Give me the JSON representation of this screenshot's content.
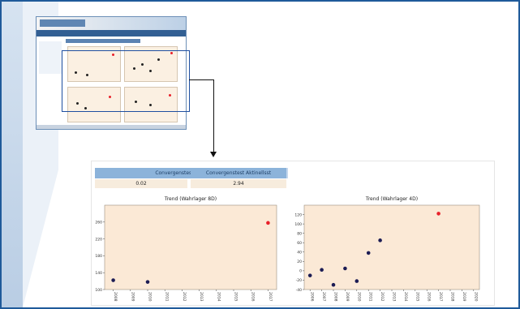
{
  "zoom_panel": {
    "kpi_headers": [
      "Convergenstest Aktuellst",
      "Convergenstest Aktinellsst"
    ],
    "kpi_values": [
      "0.02",
      "2.94"
    ]
  },
  "chart_data": [
    {
      "type": "scatter",
      "title": "Trend (Wahrlager 8D)",
      "xlabel": "",
      "ylabel": "",
      "categories": [
        "2008",
        "2009",
        "2010",
        "2011",
        "2012",
        "2013",
        "2014",
        "2015",
        "2016",
        "2017"
      ],
      "ylim": [
        100,
        300
      ],
      "yticks": [
        100,
        140,
        180,
        220,
        260
      ],
      "series": [
        {
          "color": "#1c1c54",
          "points": [
            {
              "x": "2008",
              "y": 122
            },
            {
              "x": "2010",
              "y": 118
            }
          ]
        },
        {
          "color": "#e8202a",
          "points": [
            {
              "x": "2017",
              "y": 258
            }
          ]
        }
      ],
      "grid": false,
      "background": "#fbe9d6"
    },
    {
      "type": "scatter",
      "title": "Trend (Wahrlager 4D)",
      "xlabel": "",
      "ylabel": "",
      "categories": [
        "2006",
        "2007",
        "2008",
        "2009",
        "2010",
        "2011",
        "2012",
        "2013",
        "2014",
        "2015",
        "2016",
        "2017",
        "2018",
        "2019",
        "2020"
      ],
      "ylim": [
        -40,
        140
      ],
      "yticks": [
        -40,
        -20,
        0,
        20,
        40,
        60,
        80,
        100,
        120
      ],
      "series": [
        {
          "color": "#1c1c54",
          "points": [
            {
              "x": "2006",
              "y": -10
            },
            {
              "x": "2007",
              "y": 2
            },
            {
              "x": "2008",
              "y": -30
            },
            {
              "x": "2009",
              "y": 5
            },
            {
              "x": "2010",
              "y": -22
            },
            {
              "x": "2011",
              "y": 38
            },
            {
              "x": "2012",
              "y": 65
            }
          ]
        },
        {
          "color": "#e8202a",
          "points": [
            {
              "x": "2017",
              "y": 122
            }
          ]
        }
      ],
      "grid": false,
      "background": "#fbe9d6"
    }
  ]
}
